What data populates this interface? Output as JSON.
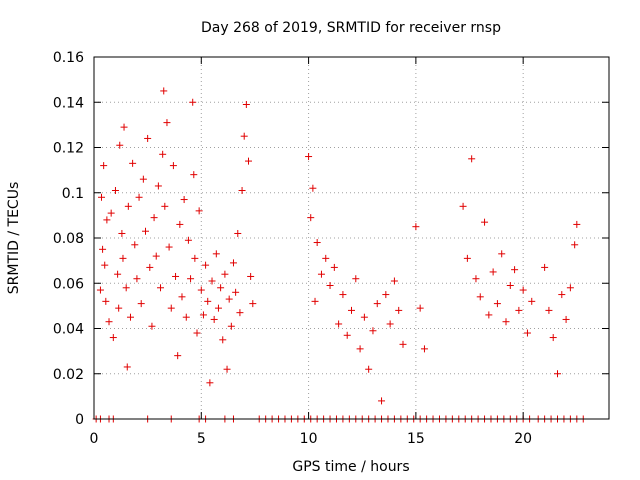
{
  "chart_data": {
    "type": "scatter",
    "title": "Day 268 of 2019, SRMTID for receiver rnsp",
    "xlabel": "GPS time / hours",
    "ylabel": "SRMTID / TECUs",
    "xlim": [
      0,
      24
    ],
    "ylim": [
      0,
      0.16
    ],
    "grid": true,
    "marker": "+",
    "x_ticks": [
      0,
      5,
      10,
      15,
      20
    ],
    "y_ticks": [
      0,
      0.02,
      0.04,
      0.06,
      0.08,
      0.1,
      0.12,
      0.14,
      0.16
    ],
    "x_tick_labels": [
      "0",
      "5",
      "10",
      "15",
      "20"
    ],
    "y_tick_labels": [
      "0",
      "0.02",
      "0.04",
      "0.06",
      "0.08",
      "0.1",
      "0.12",
      "0.14",
      "0.16"
    ],
    "series": [
      {
        "name": "SRMTID",
        "color": "#e00000",
        "points": [
          [
            0.3,
            0.057
          ],
          [
            0.35,
            0.098
          ],
          [
            0.4,
            0.075
          ],
          [
            0.45,
            0.112
          ],
          [
            0.5,
            0.068
          ],
          [
            0.55,
            0.052
          ],
          [
            0.6,
            0.088
          ],
          [
            0.7,
            0.043
          ],
          [
            0.8,
            0.091
          ],
          [
            0.9,
            0.036
          ],
          [
            1.0,
            0.101
          ],
          [
            1.1,
            0.064
          ],
          [
            1.15,
            0.049
          ],
          [
            1.2,
            0.121
          ],
          [
            1.3,
            0.082
          ],
          [
            1.35,
            0.071
          ],
          [
            1.4,
            0.129
          ],
          [
            1.5,
            0.058
          ],
          [
            1.55,
            0.023
          ],
          [
            1.6,
            0.094
          ],
          [
            1.7,
            0.045
          ],
          [
            1.8,
            0.113
          ],
          [
            1.9,
            0.077
          ],
          [
            2.0,
            0.062
          ],
          [
            2.1,
            0.098
          ],
          [
            2.2,
            0.051
          ],
          [
            2.3,
            0.106
          ],
          [
            2.4,
            0.083
          ],
          [
            2.5,
            0.124
          ],
          [
            2.6,
            0.067
          ],
          [
            2.7,
            0.041
          ],
          [
            2.8,
            0.089
          ],
          [
            2.9,
            0.072
          ],
          [
            3.0,
            0.103
          ],
          [
            3.1,
            0.058
          ],
          [
            3.2,
            0.117
          ],
          [
            3.25,
            0.145
          ],
          [
            3.3,
            0.094
          ],
          [
            3.4,
            0.131
          ],
          [
            3.5,
            0.076
          ],
          [
            3.6,
            0.049
          ],
          [
            3.7,
            0.112
          ],
          [
            3.8,
            0.063
          ],
          [
            3.9,
            0.028
          ],
          [
            4.0,
            0.086
          ],
          [
            4.1,
            0.054
          ],
          [
            4.2,
            0.097
          ],
          [
            4.3,
            0.045
          ],
          [
            4.4,
            0.079
          ],
          [
            4.5,
            0.062
          ],
          [
            4.6,
            0.14
          ],
          [
            4.65,
            0.108
          ],
          [
            4.7,
            0.071
          ],
          [
            4.8,
            0.038
          ],
          [
            4.9,
            0.092
          ],
          [
            5.0,
            0.057
          ],
          [
            5.1,
            0.046
          ],
          [
            5.2,
            0.068
          ],
          [
            5.3,
            0.052
          ],
          [
            5.4,
            0.016
          ],
          [
            5.5,
            0.061
          ],
          [
            5.6,
            0.044
          ],
          [
            5.7,
            0.073
          ],
          [
            5.8,
            0.049
          ],
          [
            5.9,
            0.058
          ],
          [
            6.0,
            0.035
          ],
          [
            6.1,
            0.064
          ],
          [
            6.2,
            0.022
          ],
          [
            6.3,
            0.053
          ],
          [
            6.4,
            0.041
          ],
          [
            6.5,
            0.069
          ],
          [
            6.6,
            0.056
          ],
          [
            6.7,
            0.082
          ],
          [
            6.8,
            0.047
          ],
          [
            6.9,
            0.101
          ],
          [
            7.0,
            0.125
          ],
          [
            7.1,
            0.139
          ],
          [
            7.2,
            0.114
          ],
          [
            7.3,
            0.063
          ],
          [
            7.4,
            0.051
          ],
          [
            10.0,
            0.116
          ],
          [
            10.1,
            0.089
          ],
          [
            10.2,
            0.102
          ],
          [
            10.3,
            0.052
          ],
          [
            10.4,
            0.078
          ],
          [
            10.6,
            0.064
          ],
          [
            10.8,
            0.071
          ],
          [
            11.0,
            0.059
          ],
          [
            11.2,
            0.067
          ],
          [
            11.4,
            0.042
          ],
          [
            11.6,
            0.055
          ],
          [
            11.8,
            0.037
          ],
          [
            12.0,
            0.048
          ],
          [
            12.2,
            0.062
          ],
          [
            12.4,
            0.031
          ],
          [
            12.6,
            0.045
          ],
          [
            12.8,
            0.022
          ],
          [
            13.0,
            0.039
          ],
          [
            13.2,
            0.051
          ],
          [
            13.4,
            0.008
          ],
          [
            13.6,
            0.055
          ],
          [
            13.8,
            0.042
          ],
          [
            14.0,
            0.061
          ],
          [
            14.2,
            0.048
          ],
          [
            14.4,
            0.033
          ],
          [
            15.0,
            0.085
          ],
          [
            15.2,
            0.049
          ],
          [
            15.4,
            0.031
          ],
          [
            17.2,
            0.094
          ],
          [
            17.4,
            0.071
          ],
          [
            17.6,
            0.115
          ],
          [
            17.8,
            0.062
          ],
          [
            18.0,
            0.054
          ],
          [
            18.2,
            0.087
          ],
          [
            18.4,
            0.046
          ],
          [
            18.6,
            0.065
          ],
          [
            18.8,
            0.051
          ],
          [
            19.0,
            0.073
          ],
          [
            19.2,
            0.043
          ],
          [
            19.4,
            0.059
          ],
          [
            19.6,
            0.066
          ],
          [
            19.8,
            0.048
          ],
          [
            20.0,
            0.057
          ],
          [
            20.2,
            0.038
          ],
          [
            20.4,
            0.052
          ],
          [
            21.0,
            0.067
          ],
          [
            21.2,
            0.048
          ],
          [
            21.4,
            0.036
          ],
          [
            21.6,
            0.02
          ],
          [
            21.8,
            0.055
          ],
          [
            22.0,
            0.044
          ],
          [
            22.2,
            0.058
          ],
          [
            22.4,
            0.077
          ],
          [
            22.5,
            0.086
          ]
        ]
      }
    ],
    "zero_points_x": [
      0.1,
      0.3,
      0.7,
      0.9,
      2.5,
      3.6,
      4.9,
      5.2,
      6.1,
      6.5,
      7.7,
      8.0,
      8.3,
      8.6,
      8.9,
      9.2,
      9.5,
      9.8,
      10.1,
      10.4,
      10.7,
      11.0,
      11.3,
      11.6,
      11.9,
      12.2,
      12.5,
      12.8,
      13.1,
      13.4,
      13.7,
      14.0,
      14.3,
      14.6,
      14.9,
      15.2,
      15.5,
      15.8,
      16.1,
      16.4,
      16.7,
      17.0,
      17.3,
      17.6,
      17.9,
      18.2,
      18.5,
      18.8,
      19.1,
      19.4,
      19.7,
      20.0,
      20.3,
      20.7,
      21.0,
      21.3,
      21.6,
      21.9,
      22.2,
      22.5,
      22.8
    ]
  }
}
